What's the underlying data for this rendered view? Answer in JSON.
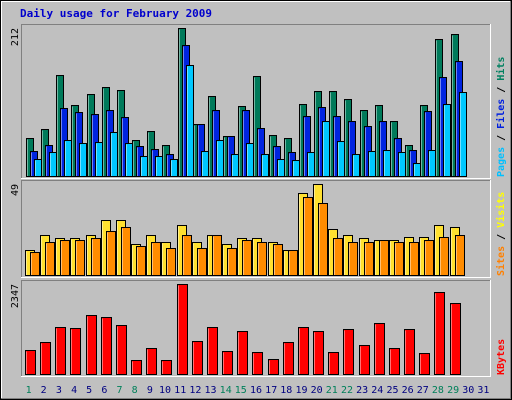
{
  "chart_data": {
    "type": "bar",
    "title": "Daily usage for February 2009",
    "categories": [
      "1",
      "2",
      "3",
      "4",
      "5",
      "6",
      "7",
      "8",
      "9",
      "10",
      "11",
      "12",
      "13",
      "14",
      "15",
      "16",
      "17",
      "18",
      "19",
      "20",
      "21",
      "22",
      "23",
      "24",
      "25",
      "26",
      "27",
      "28",
      "29",
      "30",
      "31"
    ],
    "weekend_days": [
      "1",
      "7",
      "8",
      "14",
      "15",
      "21",
      "22",
      "28",
      "29"
    ],
    "panels": [
      {
        "name": "hits-files-pages",
        "max_label": "212",
        "ymax": 212,
        "right_labels": [
          {
            "text": "Pages",
            "color": "#00c0ff"
          },
          {
            "text": " / ",
            "color": "#000000"
          },
          {
            "text": "Files",
            "color": "#0020e0"
          },
          {
            "text": " / ",
            "color": "#000000"
          },
          {
            "text": "Hits",
            "color": "#008060"
          }
        ],
        "series": [
          {
            "name": "Hits",
            "color": "#007a5a",
            "values": [
              55,
              68,
              145,
              102,
              118,
              128,
              124,
              53,
              66,
              46,
              212,
              76,
              115,
              58,
              101,
              144,
              60,
              56,
              104,
              123,
              123,
              111,
              95,
              103,
              80,
              46,
              103,
              196,
              204,
              null,
              null
            ]
          },
          {
            "name": "Files",
            "color": "#0024e0",
            "values": [
              37,
              45,
              98,
              92,
              90,
              95,
              85,
              44,
              40,
              33,
              188,
              75,
              95,
              58,
              96,
              70,
              44,
              36,
              87,
              99,
              87,
              80,
              73,
              80,
              55,
              38,
              94,
              142,
              165,
              null,
              null
            ]
          },
          {
            "name": "Pages",
            "color": "#00c8ff",
            "values": [
              25,
              35,
              53,
              48,
              50,
              64,
              48,
              30,
              30,
              25,
              160,
              37,
              53,
              33,
              49,
              33,
              25,
              24,
              35,
              80,
              51,
              33,
              37,
              38,
              35,
              20,
              39,
              104,
              121,
              null,
              null
            ]
          }
        ]
      },
      {
        "name": "visits-sites",
        "max_label": "49",
        "ymax": 49,
        "right_labels": [
          {
            "text": "Sites",
            "color": "#ff8000"
          },
          {
            "text": " / ",
            "color": "#000000"
          },
          {
            "text": "Visits",
            "color": "#ffff00"
          }
        ],
        "series": [
          {
            "name": "Visits",
            "color": "#ffe030",
            "values": [
              14,
              22,
              20,
              20,
              22,
              30,
              30,
              17,
              22,
              18,
              27,
              18,
              22,
              17,
              20,
              20,
              18,
              14,
              44,
              49,
              25,
              22,
              20,
              19,
              19,
              21,
              21,
              27,
              26,
              null,
              null
            ]
          },
          {
            "name": "Sites",
            "color": "#ff8c00",
            "values": [
              13,
              18,
              19,
              19,
              20,
              24,
              26,
              16,
              18,
              15,
              22,
              15,
              22,
              15,
              19,
              18,
              17,
              14,
              42,
              39,
              20,
              18,
              18,
              19,
              18,
              18,
              19,
              21,
              22,
              null,
              null
            ]
          }
        ]
      },
      {
        "name": "kbytes",
        "max_label": "2347",
        "ymax": 2347,
        "right_labels": [
          {
            "text": "KBytes",
            "color": "#ff0000"
          }
        ],
        "series": [
          {
            "name": "KBytes",
            "color": "#ff0000",
            "values": [
              650,
              850,
              1250,
              1200,
              1550,
              1500,
              1300,
              380,
              700,
              380,
              2347,
              880,
              1250,
              630,
              1130,
              600,
              420,
              860,
              1230,
              1130,
              600,
              1180,
              770,
              1350,
              700,
              1180,
              560,
              2150,
              1850,
              null,
              null
            ]
          }
        ]
      }
    ]
  }
}
